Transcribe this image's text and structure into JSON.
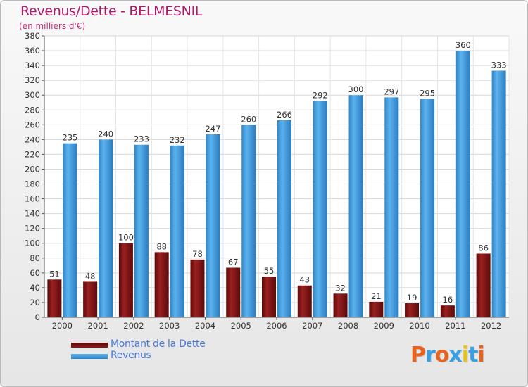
{
  "title": "Revenus/Dette - BELMESNIL",
  "subtitle": "(en milliers d'€)",
  "logo": {
    "text": "Proxiti",
    "letter_colors": [
      "#e8641e",
      "#3aa0e0",
      "#e8641e",
      "#3aa0e0",
      "#e8c21e",
      "#3aa0e0",
      "#e8641e"
    ]
  },
  "chart_data": {
    "type": "bar",
    "categories": [
      "2000",
      "2001",
      "2002",
      "2003",
      "2004",
      "2005",
      "2006",
      "2007",
      "2008",
      "2009",
      "2010",
      "2011",
      "2012"
    ],
    "series": [
      {
        "name": "Montant de la Dette",
        "color": "#7a1010",
        "values": [
          51,
          48,
          100,
          88,
          78,
          67,
          55,
          43,
          32,
          21,
          19,
          16,
          86
        ]
      },
      {
        "name": "Revenus",
        "color": "#3d9ce0",
        "values": [
          235,
          240,
          233,
          232,
          247,
          260,
          266,
          292,
          300,
          297,
          295,
          360,
          333
        ]
      }
    ],
    "ylim": [
      0,
      380
    ],
    "yticks": [
      0,
      20,
      40,
      60,
      80,
      100,
      120,
      140,
      160,
      180,
      200,
      220,
      240,
      260,
      280,
      300,
      320,
      340,
      360,
      380
    ],
    "grid": true,
    "data_labels": true,
    "legend_position": "bottom-left"
  }
}
